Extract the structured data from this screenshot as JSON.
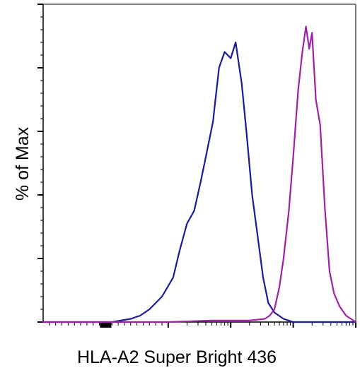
{
  "chart_data": {
    "type": "line",
    "title": "",
    "xlabel": "HLA-A2 Super Bright 436",
    "ylabel": "% of Max",
    "xscale": "log",
    "xlim": [
      -100,
      100000
    ],
    "ylim": [
      0,
      100
    ],
    "grid": false,
    "legend": "none",
    "series": [
      {
        "color": "#1a1a9c",
        "x": [
          -100,
          10,
          40,
          55,
          70,
          90,
          120,
          150,
          200,
          260,
          330,
          420,
          520,
          650,
          800,
          1000,
          1200,
          1500,
          1800,
          2200,
          2700,
          3300,
          4000,
          5000,
          7000,
          10000,
          20000,
          50000,
          100000
        ],
        "y": [
          0,
          0,
          1,
          2,
          4,
          8,
          14,
          22,
          31,
          35,
          44,
          54,
          63,
          80,
          85,
          83,
          88,
          75,
          59,
          40,
          27,
          14,
          6,
          3,
          1,
          0,
          0,
          0,
          0
        ]
      },
      {
        "color": "#a020a8",
        "x": [
          -100,
          100,
          500,
          2000,
          3500,
          4200,
          5000,
          6000,
          7000,
          8500,
          10000,
          12000,
          14000,
          16000,
          18000,
          20000,
          23000,
          27000,
          32000,
          38000,
          45000,
          55000,
          70000,
          100000
        ],
        "y": [
          0,
          0,
          0.5,
          0.5,
          1,
          2,
          4,
          11,
          20,
          35,
          52,
          73,
          85,
          93,
          86,
          91,
          70,
          62,
          36,
          16,
          9,
          5,
          2,
          0
        ]
      }
    ]
  }
}
